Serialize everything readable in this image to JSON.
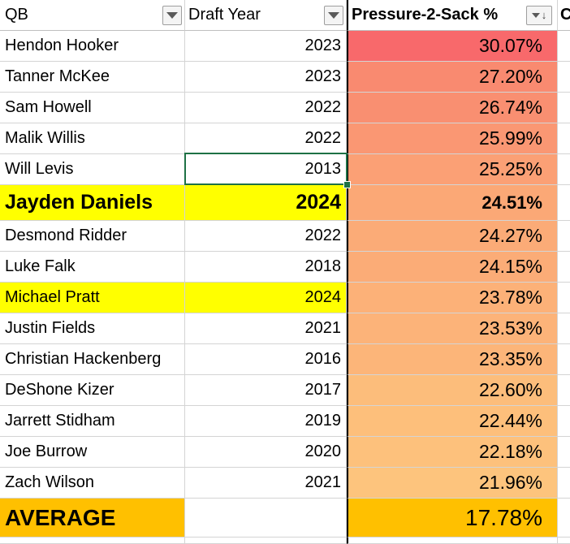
{
  "headers": {
    "qb": "QB",
    "draft_year": "Draft Year",
    "p2s": "Pressure-2-Sack %",
    "next_col_partial": "C"
  },
  "filter_icon": "dropdown-filter-icon",
  "sort_icon": "sort-descending-icon",
  "colors": {
    "highlight_yellow": "#ffff00",
    "average_orange": "#ffc000",
    "selection_green": "#1e7145"
  },
  "rows": [
    {
      "qb": "Hendon Hooker",
      "year": "2023",
      "p2s": "30.07%",
      "color": "#f8696b"
    },
    {
      "qb": "Tanner McKee",
      "year": "2023",
      "p2s": "27.20%",
      "color": "#f98a70"
    },
    {
      "qb": "Sam Howell",
      "year": "2022",
      "p2s": "26.74%",
      "color": "#f98f71"
    },
    {
      "qb": "Malik Willis",
      "year": "2022",
      "p2s": "25.99%",
      "color": "#fa9773"
    },
    {
      "qb": "Will Levis",
      "year": "2013",
      "p2s": "25.25%",
      "color": "#fba075"
    },
    {
      "qb": "Jayden Daniels",
      "year": "2024",
      "p2s": "24.51%",
      "color": "#fba876",
      "highlight": true,
      "bold": true
    },
    {
      "qb": "Desmond Ridder",
      "year": "2022",
      "p2s": "24.27%",
      "color": "#fbab77"
    },
    {
      "qb": "Luke Falk",
      "year": "2018",
      "p2s": "24.15%",
      "color": "#fbac77"
    },
    {
      "qb": "Michael Pratt",
      "year": "2024",
      "p2s": "23.78%",
      "color": "#fcb178",
      "highlight": true
    },
    {
      "qb": "Justin Fields",
      "year": "2021",
      "p2s": "23.53%",
      "color": "#fcb379"
    },
    {
      "qb": "Christian Hackenberg",
      "year": "2016",
      "p2s": "23.35%",
      "color": "#fcb579"
    },
    {
      "qb": "DeShone Kizer",
      "year": "2017",
      "p2s": "22.60%",
      "color": "#fcbd7b"
    },
    {
      "qb": "Jarrett Stidham",
      "year": "2019",
      "p2s": "22.44%",
      "color": "#fdbf7b"
    },
    {
      "qb": "Joe Burrow",
      "year": "2020",
      "p2s": "22.18%",
      "color": "#fdc17c"
    },
    {
      "qb": "Zach Wilson",
      "year": "2021",
      "p2s": "21.96%",
      "color": "#fdc47d"
    }
  ],
  "average": {
    "label": "AVERAGE",
    "year": "",
    "p2s": "17.78%"
  }
}
